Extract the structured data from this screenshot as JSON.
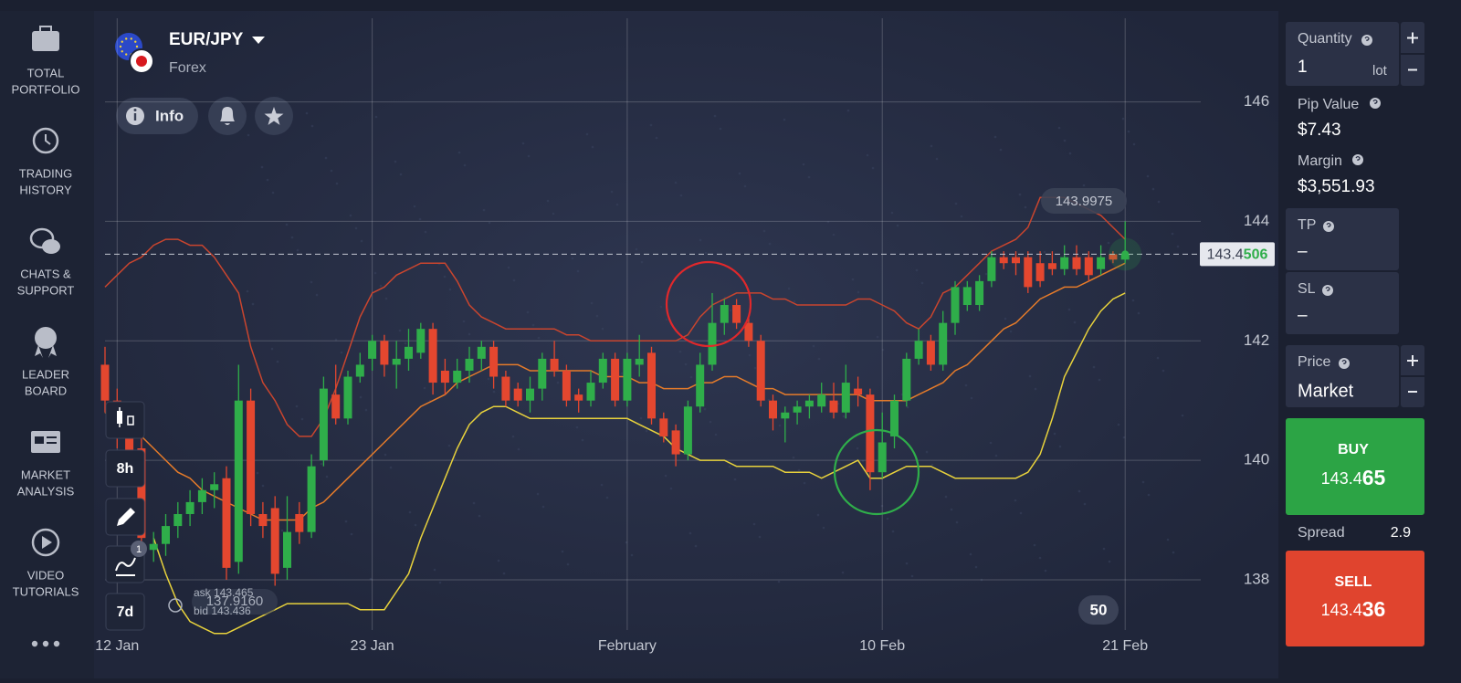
{
  "sidebar": [
    {
      "lines": [
        "TOTAL",
        "PORTFOLIO"
      ]
    },
    {
      "lines": [
        "TRADING",
        "HISTORY"
      ]
    },
    {
      "lines": [
        "CHATS &",
        "SUPPORT"
      ]
    },
    {
      "lines": [
        "LEADER",
        "BOARD"
      ]
    },
    {
      "lines": [
        "MARKET",
        "ANALYSIS"
      ]
    },
    {
      "lines": [
        "VIDEO",
        "TUTORIALS"
      ]
    }
  ],
  "header": {
    "pair": "EUR/JPY",
    "market": "Forex",
    "info_button": "Info"
  },
  "toolbar": {
    "interval": "8h",
    "range": "7d",
    "indicator_count": 1,
    "zoom": 50
  },
  "chart_data": {
    "type": "candlestick",
    "categories": [
      null,
      "12 Jan",
      null,
      null,
      null,
      null,
      null,
      null,
      null,
      null,
      null,
      null,
      null,
      null,
      null,
      null,
      null,
      null,
      null,
      null,
      null,
      null,
      "23 Jan",
      null,
      null,
      null,
      null,
      null,
      null,
      null,
      null,
      null,
      null,
      null,
      null,
      null,
      null,
      null,
      null,
      null,
      null,
      null,
      null,
      "February",
      null,
      null,
      null,
      null,
      null,
      null,
      null,
      null,
      null,
      null,
      null,
      null,
      null,
      null,
      null,
      null,
      null,
      null,
      null,
      null,
      "10 Feb",
      null,
      null,
      null,
      null,
      null,
      null,
      null,
      null,
      null,
      null,
      null,
      null,
      null,
      null,
      null,
      null,
      null,
      null,
      null,
      "21 Feb"
    ],
    "open": [
      141.6,
      141.0,
      140.4,
      140.2,
      138.5,
      138.6,
      138.9,
      139.1,
      139.3,
      139.5,
      139.7,
      138.3,
      141.0,
      139.1,
      139.2,
      138.2,
      139.1,
      138.8,
      140.0,
      141.1,
      140.7,
      141.4,
      141.7,
      142.0,
      141.6,
      141.7,
      141.8,
      142.2,
      141.5,
      141.3,
      141.5,
      141.7,
      141.9,
      141.4,
      141.2,
      141.0,
      141.2,
      141.7,
      141.5,
      141.1,
      141.0,
      141.3,
      141.7,
      141.0,
      141.6,
      141.8,
      140.7,
      140.5,
      140.1,
      140.9,
      141.6,
      142.3,
      142.6,
      142.3,
      142.0,
      141.0,
      140.7,
      140.8,
      140.9,
      140.9,
      141.0,
      140.8,
      141.2,
      141.1,
      139.8,
      140.4,
      141.0,
      141.7,
      142.0,
      141.6,
      142.3,
      142.6,
      142.6,
      143.0,
      143.4,
      143.4,
      143.4,
      143.3,
      143.3,
      143.2,
      143.4,
      143.4,
      143.2,
      143.45,
      143.36
    ],
    "high": [
      141.9,
      141.2,
      140.6,
      140.4,
      138.8,
      139.1,
      139.3,
      139.5,
      139.7,
      139.8,
      139.9,
      141.6,
      141.2,
      139.3,
      139.4,
      139.4,
      139.3,
      140.1,
      141.4,
      141.6,
      141.5,
      141.8,
      142.1,
      142.1,
      142.0,
      142.2,
      142.3,
      142.3,
      141.7,
      141.7,
      141.9,
      142.0,
      142.0,
      141.5,
      141.3,
      141.4,
      141.8,
      142.0,
      141.6,
      141.2,
      141.5,
      141.8,
      141.8,
      141.8,
      142.1,
      141.9,
      140.8,
      140.6,
      141.0,
      141.8,
      142.8,
      142.7,
      142.7,
      142.4,
      142.1,
      141.1,
      140.9,
      141.0,
      141.1,
      141.3,
      141.3,
      141.6,
      141.4,
      141.2,
      140.8,
      141.1,
      141.8,
      142.2,
      142.1,
      142.5,
      143.0,
      143.0,
      143.1,
      143.5,
      143.5,
      143.5,
      143.5,
      143.5,
      143.5,
      143.6,
      143.6,
      143.5,
      143.6,
      143.5,
      144.0
    ],
    "low": [
      140.8,
      140.2,
      139.7,
      138.5,
      138.3,
      138.4,
      138.7,
      138.9,
      139.1,
      139.2,
      138.0,
      138.1,
      138.9,
      138.7,
      137.9,
      138.0,
      138.6,
      138.7,
      139.9,
      140.6,
      140.6,
      141.3,
      141.5,
      141.4,
      141.2,
      141.5,
      141.7,
      141.1,
      141.1,
      141.2,
      141.3,
      141.5,
      141.2,
      140.9,
      140.9,
      140.8,
      141.0,
      141.4,
      140.9,
      140.8,
      140.9,
      141.2,
      140.9,
      140.9,
      141.4,
      140.6,
      140.3,
      139.9,
      140.0,
      140.8,
      141.5,
      142.1,
      142.2,
      141.9,
      140.9,
      140.5,
      140.3,
      140.6,
      140.7,
      140.8,
      140.7,
      140.7,
      140.9,
      139.5,
      139.7,
      140.2,
      140.9,
      141.6,
      141.5,
      141.5,
      142.1,
      142.5,
      142.5,
      142.9,
      143.2,
      143.1,
      142.8,
      142.9,
      143.1,
      143.1,
      143.1,
      143.0,
      143.1,
      143.3,
      143.3
    ],
    "close": [
      141.0,
      140.4,
      139.9,
      138.7,
      138.6,
      138.9,
      139.1,
      139.3,
      139.5,
      139.6,
      138.2,
      141.0,
      139.1,
      138.9,
      138.1,
      138.8,
      138.8,
      139.9,
      141.2,
      140.7,
      141.4,
      141.6,
      142.0,
      141.6,
      141.7,
      141.9,
      142.2,
      141.3,
      141.3,
      141.5,
      141.7,
      141.9,
      141.4,
      141.0,
      141.0,
      141.2,
      141.7,
      141.5,
      141.0,
      141.0,
      141.3,
      141.7,
      141.0,
      141.7,
      141.7,
      140.7,
      140.4,
      140.1,
      140.9,
      141.6,
      142.3,
      142.6,
      142.3,
      142.0,
      141.0,
      140.7,
      140.8,
      140.9,
      141.0,
      141.1,
      140.8,
      141.3,
      141.1,
      139.8,
      140.3,
      141.0,
      141.7,
      142.0,
      141.6,
      142.3,
      142.9,
      142.9,
      143.0,
      143.4,
      143.3,
      143.3,
      142.9,
      143.0,
      143.2,
      143.4,
      143.2,
      143.1,
      143.4,
      143.36,
      143.45
    ],
    "up_color": "#2fae4a",
    "down_color": "#e4472f",
    "bands": [
      {
        "color": "#c9452e",
        "values": [
          142.9,
          143.1,
          143.3,
          143.4,
          143.6,
          143.7,
          143.7,
          143.6,
          143.6,
          143.4,
          143.1,
          142.8,
          141.9,
          141.3,
          141.0,
          140.6,
          140.4,
          140.4,
          140.7,
          141.2,
          141.8,
          142.4,
          142.8,
          142.9,
          143.1,
          143.2,
          143.3,
          143.3,
          143.3,
          143.0,
          142.6,
          142.4,
          142.3,
          142.2,
          142.2,
          142.2,
          142.2,
          142.2,
          142.1,
          142.1,
          142.0,
          142.0,
          142.0,
          142.0,
          142.0,
          142.0,
          142.0,
          142.0,
          142.1,
          142.4,
          142.6,
          142.7,
          142.8,
          142.8,
          142.8,
          142.7,
          142.7,
          142.6,
          142.6,
          142.6,
          142.6,
          142.6,
          142.7,
          142.7,
          142.6,
          142.5,
          142.3,
          142.2,
          142.4,
          142.8,
          142.9,
          143.1,
          143.3,
          143.5,
          143.6,
          143.7,
          143.9,
          144.4,
          144.4,
          144.4,
          144.3,
          144.2,
          144.1,
          143.9,
          143.7
        ]
      },
      {
        "color": "#e57b2a",
        "values": [
          140.8,
          140.7,
          140.5,
          140.4,
          140.2,
          140.0,
          139.8,
          139.7,
          139.5,
          139.4,
          139.3,
          139.2,
          139.1,
          139.0,
          139.0,
          139.0,
          139.0,
          139.2,
          139.3,
          139.5,
          139.7,
          139.9,
          140.1,
          140.3,
          140.5,
          140.7,
          140.9,
          141.0,
          141.1,
          141.3,
          141.4,
          141.5,
          141.6,
          141.6,
          141.6,
          141.5,
          141.5,
          141.5,
          141.5,
          141.5,
          141.5,
          141.4,
          141.4,
          141.4,
          141.3,
          141.3,
          141.2,
          141.2,
          141.2,
          141.3,
          141.3,
          141.4,
          141.4,
          141.3,
          141.2,
          141.2,
          141.1,
          141.1,
          141.1,
          141.1,
          141.1,
          141.1,
          141.1,
          141.0,
          141.0,
          141.0,
          141.0,
          141.1,
          141.2,
          141.3,
          141.5,
          141.6,
          141.8,
          142.0,
          142.2,
          142.3,
          142.5,
          142.7,
          142.8,
          142.9,
          142.9,
          143.0,
          143.1,
          143.2,
          143.3
        ]
      },
      {
        "color": "#e8d23c",
        "values": [
          null,
          null,
          null,
          null,
          138.7,
          138.1,
          137.6,
          137.3,
          137.2,
          137.1,
          137.1,
          137.2,
          137.3,
          137.4,
          137.5,
          137.6,
          137.6,
          137.6,
          137.6,
          137.6,
          137.6,
          137.5,
          137.5,
          137.5,
          137.8,
          138.1,
          138.7,
          139.2,
          139.7,
          140.2,
          140.6,
          140.8,
          140.9,
          140.9,
          140.8,
          140.7,
          140.7,
          140.7,
          140.7,
          140.7,
          140.7,
          140.7,
          140.7,
          140.7,
          140.6,
          140.5,
          140.4,
          140.2,
          140.1,
          140.0,
          140.0,
          140.0,
          139.9,
          139.9,
          139.9,
          139.9,
          139.8,
          139.8,
          139.8,
          139.7,
          139.8,
          139.9,
          140.0,
          139.7,
          139.7,
          139.8,
          139.9,
          139.9,
          139.9,
          139.8,
          139.7,
          139.7,
          139.7,
          139.7,
          139.7,
          139.7,
          139.8,
          140.1,
          140.7,
          141.4,
          141.8,
          142.2,
          142.5,
          142.7,
          142.8
        ]
      }
    ],
    "ylim": [
      136.7,
      147.4
    ],
    "yticks": [
      138,
      140,
      142,
      144,
      146
    ],
    "grid": true,
    "current_price": {
      "value": 143.4506,
      "label": "143.4",
      "label_tail": "506"
    },
    "band_high_label": "143.9975",
    "band_low_label": "137.9160",
    "quote": {
      "ask": "ask 143.465",
      "bid": "bid 143.436"
    }
  },
  "panel": {
    "quantity_label": "Quantity",
    "quantity": 1,
    "quantity_unit": "lot",
    "pip_value_label": "Pip Value",
    "pip_value": "$7.43",
    "margin_label": "Margin",
    "margin": "$3,551.93",
    "tp_label": "TP",
    "tp": "–",
    "sl_label": "SL",
    "sl": "–",
    "price_label": "Price",
    "price": "Market",
    "buy_label": "BUY",
    "buy_price": {
      "main": "143.4",
      "tail": "65"
    },
    "spread_label": "Spread",
    "spread": 2.9,
    "sell_label": "SELL",
    "sell_price": {
      "main": "143.4",
      "tail": "36"
    }
  }
}
